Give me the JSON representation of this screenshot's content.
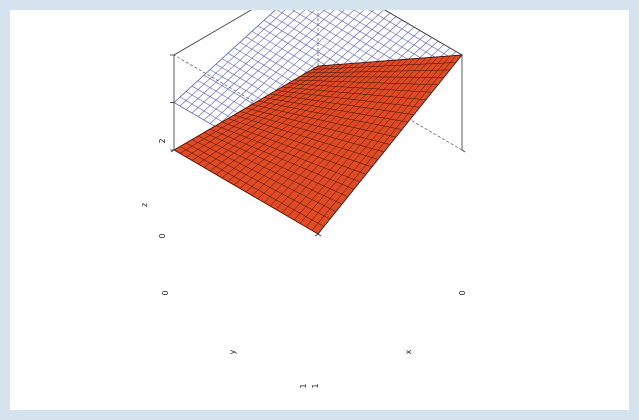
{
  "chart_data": {
    "type": "surface3d",
    "axes": {
      "x": {
        "label": "x",
        "range": [
          0,
          1
        ],
        "tick_labels": [
          "1"
        ]
      },
      "y": {
        "label": "y",
        "range": [
          0,
          1
        ],
        "tick_labels": [
          "0",
          "1"
        ]
      },
      "z": {
        "label": "z",
        "range": [
          0,
          2
        ],
        "tick_labels": [
          "0",
          "2"
        ]
      }
    },
    "grid_resolution": 24,
    "surfaces": [
      {
        "style": "wireframe",
        "color": "#5a63b8",
        "corners": [
          {
            "x": 0,
            "y": 0,
            "z": 1
          },
          {
            "x": 1,
            "y": 0,
            "z": 2
          },
          {
            "x": 1,
            "y": 1,
            "z": 2
          },
          {
            "x": 0,
            "y": 1,
            "z": 1
          }
        ]
      },
      {
        "style": "filled-mesh",
        "color": "#e04a25",
        "mesh_color": "#3a1208",
        "corners": [
          {
            "x": 0,
            "y": 0,
            "z": 0
          },
          {
            "x": 1,
            "y": 0,
            "z": 2
          },
          {
            "x": 1,
            "y": 1,
            "z": 0
          },
          {
            "x": 0,
            "y": 1,
            "z": 0
          }
        ]
      }
    ],
    "box": {
      "visible": true,
      "hidden_edges": "dashed"
    }
  }
}
